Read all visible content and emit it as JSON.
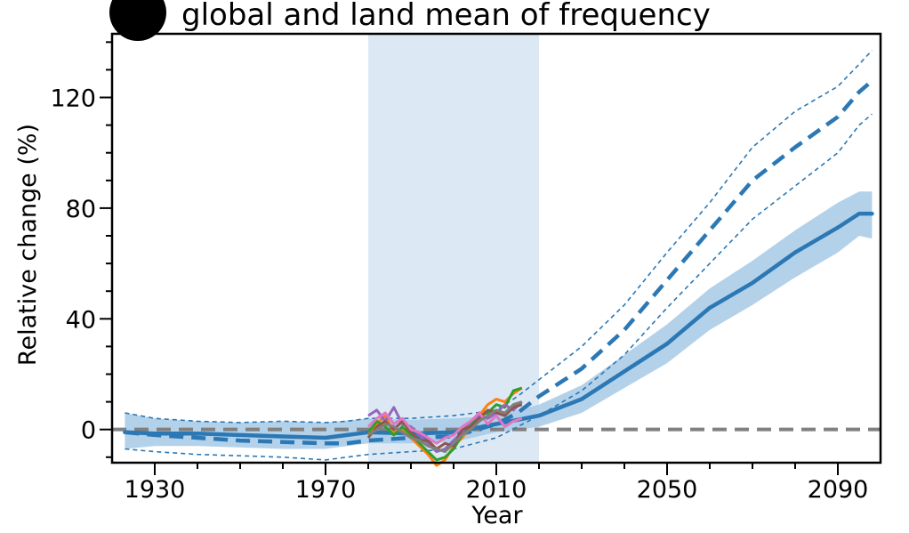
{
  "title": "global and land mean of frequency",
  "colors": {
    "main": "#2b78b4",
    "band": "#a7c9e6",
    "highlight": "#dce9f5",
    "zero_line": "#808080",
    "obs": [
      "#ff7f0e",
      "#2ca02c",
      "#9467bd",
      "#8c564b",
      "#e377c2",
      "#7f7f7f"
    ]
  },
  "chart_data": {
    "type": "line",
    "title": "global and land mean of frequency",
    "xlabel": "Year",
    "ylabel": "Relative change (%)",
    "xlim": [
      1920,
      2100
    ],
    "ylim": [
      -12,
      143
    ],
    "xticks": [
      "1930",
      "1970",
      "2010",
      "2050",
      "2090"
    ],
    "yticks": [
      "0",
      "40",
      "80",
      "120"
    ],
    "shaded_period": [
      1980,
      2020
    ],
    "reference_line_y": 0,
    "series": [
      {
        "style": "solid-with-band",
        "x": [
          1923,
          1930,
          1940,
          1950,
          1960,
          1970,
          1980,
          1990,
          2000,
          2010,
          2015,
          2020,
          2030,
          2040,
          2050,
          2060,
          2070,
          2080,
          2090,
          2095,
          2098
        ],
        "values": [
          -1,
          -1.5,
          -1.5,
          -2,
          -2.5,
          -3,
          -1,
          -1.5,
          -1,
          2,
          3.5,
          5,
          11,
          21,
          31,
          44,
          53,
          64,
          73,
          78,
          78
        ],
        "band_low": [
          -7,
          -6,
          -6,
          -6.5,
          -7,
          -7,
          -5,
          -5,
          -4.5,
          -1,
          0,
          1,
          6,
          15,
          24,
          36,
          45,
          55,
          64,
          70,
          69
        ],
        "band_high": [
          6,
          4,
          3,
          2.5,
          3,
          2.5,
          4,
          3.5,
          4,
          5,
          7,
          9,
          16,
          27,
          38,
          51,
          61,
          72,
          82,
          86,
          86
        ]
      },
      {
        "style": "dashed-with-dashed-bounds",
        "x": [
          1923,
          1930,
          1940,
          1950,
          1960,
          1970,
          1975,
          1980,
          1990,
          2000,
          2010,
          2015,
          2020,
          2030,
          2040,
          2050,
          2060,
          2070,
          2080,
          2090,
          2095,
          2098
        ],
        "values": [
          -1,
          -2,
          -3,
          -4,
          -4.5,
          -5,
          -5,
          -4,
          -3,
          -2.5,
          2,
          6,
          12,
          22,
          36,
          54,
          72,
          90,
          102,
          113,
          122,
          126
        ],
        "lower": [
          -7,
          -8,
          -9,
          -9.5,
          -10,
          -11,
          -10,
          -9,
          -8,
          -7,
          -3,
          1,
          5,
          14,
          27,
          44,
          60,
          76,
          88,
          100,
          110,
          114
        ],
        "upper": [
          6,
          4,
          3,
          2.5,
          3,
          2.5,
          3,
          4,
          4,
          5,
          7,
          12,
          18,
          30,
          45,
          64,
          82,
          102,
          115,
          124,
          132,
          137
        ]
      },
      {
        "style": "observed",
        "x": [
          1980,
          1982,
          1984,
          1986,
          1988,
          1990,
          1992,
          1994,
          1996,
          1998,
          2000,
          2002,
          2004,
          2006,
          2008,
          2010,
          2012,
          2014,
          2016
        ],
        "values": [
          -2,
          2,
          5,
          -1,
          0,
          -3,
          -6,
          -9,
          -13,
          -11,
          -6,
          -3,
          1,
          5,
          9,
          11,
          10,
          13,
          15
        ]
      },
      {
        "style": "observed",
        "x": [
          1980,
          1982,
          1984,
          1986,
          1988,
          1990,
          1992,
          1994,
          1996,
          1998,
          2000,
          2002,
          2004,
          2006,
          2008,
          2010,
          2012,
          2014,
          2016
        ],
        "values": [
          -1,
          3,
          1,
          -2,
          1,
          -2,
          -5,
          -8,
          -11,
          -10,
          -7,
          -2,
          2,
          5,
          6,
          9,
          8,
          14,
          15
        ]
      },
      {
        "style": "observed",
        "x": [
          1980,
          1982,
          1984,
          1986,
          1988,
          1990,
          1992,
          1994,
          1996,
          1998,
          2000,
          2002,
          2004,
          2006,
          2008,
          2010,
          2012,
          2014,
          2016
        ],
        "values": [
          5,
          7,
          3,
          8,
          2,
          1,
          -2,
          -5,
          -8,
          -7,
          -4,
          -1,
          3,
          5,
          4,
          6,
          9,
          7,
          10
        ]
      },
      {
        "style": "observed",
        "x": [
          1980,
          1982,
          1984,
          1986,
          1988,
          1990,
          1992,
          1994,
          1996,
          1998,
          2000,
          2002,
          2004,
          2006,
          2008,
          2010,
          2012,
          2014,
          2016
        ],
        "values": [
          -3,
          1,
          3,
          0,
          3,
          -1,
          -4,
          -4,
          -7,
          -5,
          -6,
          0,
          1,
          4,
          7,
          6,
          5,
          8,
          9
        ]
      },
      {
        "style": "observed",
        "x": [
          1980,
          1982,
          1984,
          1986,
          1988,
          1990,
          1992,
          1994,
          1996,
          1998,
          2000,
          2002,
          2004,
          2006,
          2008,
          2010,
          2012,
          2014,
          2016
        ],
        "values": [
          1,
          4,
          6,
          2,
          4,
          0,
          -1,
          -3,
          -5,
          -3,
          -2,
          1,
          3,
          6,
          2,
          5,
          1,
          3,
          4
        ]
      },
      {
        "style": "observed",
        "x": [
          1980,
          1982,
          1984,
          1986,
          1988,
          1990,
          1992,
          1994,
          1996,
          1998,
          2000,
          2002,
          2004,
          2006,
          2008,
          2010,
          2012,
          2014,
          2016
        ],
        "values": [
          -2,
          0,
          2,
          1,
          -1,
          -3,
          -4,
          -6,
          -7,
          -8,
          -5,
          -2,
          0,
          3,
          5,
          7,
          6,
          9,
          10
        ]
      }
    ]
  }
}
